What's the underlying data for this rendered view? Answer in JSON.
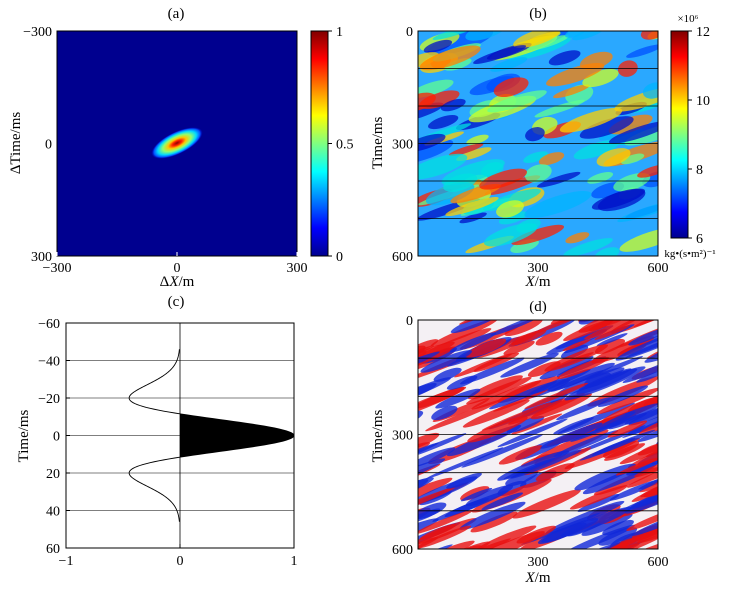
{
  "chart_data": [
    {
      "panel": "(a)",
      "type": "heatmap",
      "title": "",
      "xlabel": "ΔX/m",
      "ylabel": "ΔTime/ms",
      "xlim": [
        -300,
        300
      ],
      "ylim": [
        -300,
        300
      ],
      "xticks": [
        "−300",
        "0",
        "300"
      ],
      "yticks": [
        "−300",
        "0",
        "300"
      ],
      "colorbar": {
        "min": 0,
        "max": 1,
        "ticks": [
          "1",
          "0.5",
          "0"
        ]
      },
      "blob": {
        "center_x": 0,
        "center_t": 0,
        "peak": 1,
        "tilt": "rising to the right"
      }
    },
    {
      "panel": "(b)",
      "type": "heatmap",
      "title": "",
      "xlabel": "X/m",
      "ylabel": "Time/ms",
      "xlim": [
        0,
        600
      ],
      "ylim": [
        0,
        600
      ],
      "xticks": [
        "300",
        "600"
      ],
      "yticks": [
        "0",
        "300",
        "600"
      ],
      "horizontal_lines_ms": [
        100,
        200,
        300,
        400,
        500
      ],
      "colorbar": {
        "min": 6,
        "max": 12,
        "ticks": [
          "12",
          "10",
          "8",
          "6"
        ],
        "multiplier": "×10⁶",
        "unit": "kg•(s•m²)⁻¹"
      }
    },
    {
      "panel": "(c)",
      "type": "line",
      "title": "",
      "xlabel": "",
      "ylabel": "Time/ms",
      "xlim": [
        -1,
        1
      ],
      "ylim": [
        -60,
        60
      ],
      "xticks": [
        "−1",
        "0",
        "1"
      ],
      "yticks": [
        "−60",
        "−40",
        "−20",
        "0",
        "20",
        "40",
        "60"
      ],
      "grid_lines_ms": [
        -40,
        -20,
        0,
        20,
        40
      ],
      "series": [
        {
          "name": "wavelet",
          "description": "Ricker wavelet, positive lobe filled black",
          "peak": 1,
          "side_lobe_min": -0.45,
          "side_lobe_time_ms": [
            -20,
            20
          ]
        }
      ]
    },
    {
      "panel": "(d)",
      "type": "heatmap",
      "title": "",
      "xlabel": "X/m",
      "ylabel": "Time/ms",
      "xlim": [
        0,
        600
      ],
      "ylim": [
        0,
        600
      ],
      "xticks": [
        "300",
        "600"
      ],
      "yticks": [
        "0",
        "300",
        "600"
      ],
      "horizontal_lines_ms": [
        100,
        200,
        300,
        400,
        500
      ]
    }
  ]
}
